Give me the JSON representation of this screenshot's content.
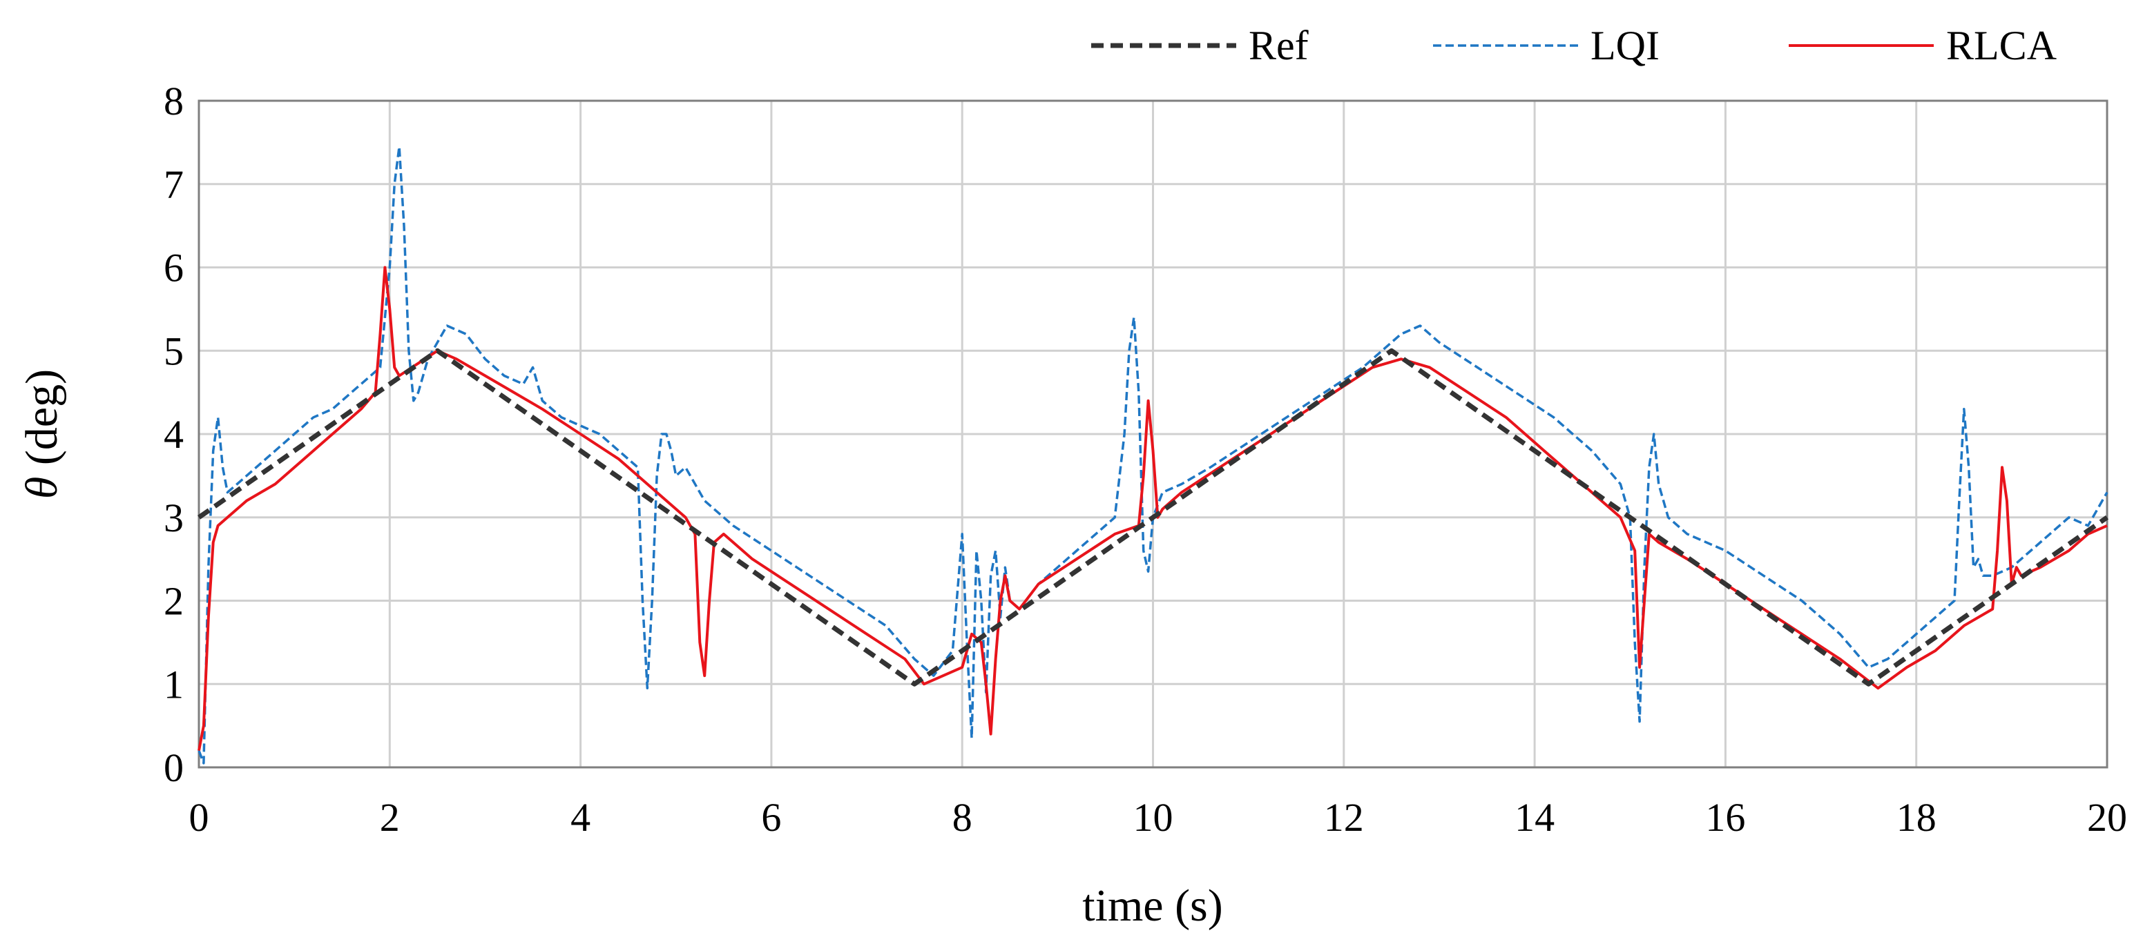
{
  "chart_data": {
    "type": "line",
    "title": "",
    "xlabel": "time (s)",
    "ylabel_symbol": "θ",
    "ylabel_unit": " (deg)",
    "xlim": [
      0,
      20
    ],
    "ylim": [
      0,
      8
    ],
    "xticks": [
      0,
      2,
      4,
      6,
      8,
      10,
      12,
      14,
      16,
      18,
      20
    ],
    "yticks": [
      0,
      1,
      2,
      3,
      4,
      5,
      6,
      7,
      8
    ],
    "grid": true,
    "legend_position": "top-right",
    "series": [
      {
        "name": "Ref",
        "color": "#333333",
        "style": "dashed",
        "x": [
          0,
          2.5,
          7.5,
          12.5,
          17.5,
          20
        ],
        "y": [
          3,
          5,
          1,
          5,
          1,
          3
        ]
      },
      {
        "name": "LQI",
        "color": "#1f77c4",
        "style": "dashed",
        "x": [
          0,
          0.05,
          0.1,
          0.15,
          0.2,
          0.25,
          0.3,
          0.4,
          0.6,
          0.8,
          1.0,
          1.2,
          1.4,
          1.6,
          1.8,
          1.9,
          2.0,
          2.05,
          2.1,
          2.15,
          2.2,
          2.25,
          2.3,
          2.4,
          2.6,
          2.8,
          3.0,
          3.2,
          3.4,
          3.5,
          3.6,
          3.8,
          4.0,
          4.2,
          4.4,
          4.6,
          4.65,
          4.7,
          4.75,
          4.8,
          4.85,
          4.9,
          4.95,
          5.0,
          5.1,
          5.3,
          5.6,
          6.0,
          6.4,
          6.8,
          7.2,
          7.5,
          7.7,
          7.9,
          8.0,
          8.05,
          8.1,
          8.15,
          8.2,
          8.25,
          8.3,
          8.35,
          8.4,
          8.45,
          8.5,
          8.6,
          8.8,
          9.0,
          9.2,
          9.4,
          9.6,
          9.7,
          9.75,
          9.8,
          9.85,
          9.9,
          9.95,
          10.0,
          10.1,
          10.3,
          10.6,
          11.0,
          11.4,
          11.8,
          12.2,
          12.6,
          12.8,
          13.0,
          13.4,
          13.8,
          14.2,
          14.6,
          14.9,
          15.0,
          15.05,
          15.1,
          15.15,
          15.2,
          15.25,
          15.3,
          15.4,
          15.6,
          16.0,
          16.4,
          16.8,
          17.2,
          17.5,
          17.7,
          17.9,
          18.1,
          18.3,
          18.4,
          18.45,
          18.5,
          18.55,
          18.6,
          18.65,
          18.7,
          18.8,
          19.0,
          19.2,
          19.4,
          19.6,
          19.8,
          20.0
        ],
        "y": [
          0.2,
          0.05,
          2.4,
          3.8,
          4.2,
          3.6,
          3.3,
          3.4,
          3.6,
          3.8,
          4.0,
          4.2,
          4.3,
          4.5,
          4.7,
          4.8,
          6.0,
          7.0,
          7.45,
          6.5,
          5.0,
          4.4,
          4.5,
          4.9,
          5.3,
          5.2,
          4.9,
          4.7,
          4.6,
          4.8,
          4.4,
          4.2,
          4.1,
          4.0,
          3.8,
          3.6,
          2.0,
          0.95,
          2.0,
          3.5,
          4.0,
          4.0,
          3.8,
          3.5,
          3.6,
          3.2,
          2.9,
          2.6,
          2.3,
          2.0,
          1.7,
          1.3,
          1.1,
          1.4,
          2.8,
          1.5,
          0.35,
          2.6,
          2.0,
          0.9,
          2.3,
          2.6,
          1.8,
          2.4,
          2.0,
          1.9,
          2.2,
          2.4,
          2.6,
          2.8,
          3.0,
          4.0,
          5.0,
          5.4,
          4.5,
          2.6,
          2.35,
          3.0,
          3.3,
          3.4,
          3.6,
          3.9,
          4.2,
          4.5,
          4.8,
          5.2,
          5.3,
          5.1,
          4.8,
          4.5,
          4.2,
          3.8,
          3.4,
          3.0,
          1.5,
          0.55,
          2.4,
          3.6,
          4.0,
          3.4,
          3.0,
          2.8,
          2.6,
          2.3,
          2.0,
          1.6,
          1.2,
          1.3,
          1.5,
          1.7,
          1.9,
          2.0,
          3.2,
          4.3,
          3.6,
          2.4,
          2.5,
          2.3,
          2.3,
          2.4,
          2.6,
          2.8,
          3.0,
          2.9,
          3.3
        ]
      },
      {
        "name": "RLCA",
        "color": "#e8141b",
        "style": "solid",
        "x": [
          0,
          0.05,
          0.1,
          0.15,
          0.2,
          0.3,
          0.5,
          0.8,
          1.1,
          1.4,
          1.7,
          1.85,
          1.9,
          1.95,
          2.0,
          2.05,
          2.1,
          2.3,
          2.5,
          2.7,
          3.0,
          3.3,
          3.6,
          4.0,
          4.4,
          4.8,
          5.1,
          5.2,
          5.25,
          5.3,
          5.35,
          5.4,
          5.5,
          5.8,
          6.2,
          6.6,
          7.0,
          7.4,
          7.6,
          7.8,
          8.0,
          8.1,
          8.2,
          8.25,
          8.3,
          8.35,
          8.4,
          8.45,
          8.5,
          8.6,
          8.8,
          9.2,
          9.6,
          9.85,
          9.9,
          9.95,
          10.0,
          10.05,
          10.1,
          10.3,
          10.7,
          11.1,
          11.5,
          11.9,
          12.3,
          12.6,
          12.9,
          13.3,
          13.7,
          14.1,
          14.5,
          14.9,
          15.05,
          15.1,
          15.15,
          15.2,
          15.3,
          15.6,
          16.0,
          16.4,
          16.8,
          17.2,
          17.6,
          17.9,
          18.2,
          18.5,
          18.8,
          18.85,
          18.9,
          18.95,
          19.0,
          19.05,
          19.1,
          19.3,
          19.6,
          19.8,
          20.0
        ],
        "y": [
          0.2,
          0.5,
          1.8,
          2.7,
          2.9,
          3.0,
          3.2,
          3.4,
          3.7,
          4.0,
          4.3,
          4.5,
          5.2,
          6.0,
          5.5,
          4.8,
          4.7,
          4.85,
          5.0,
          4.9,
          4.7,
          4.5,
          4.3,
          4.0,
          3.7,
          3.3,
          3.0,
          2.8,
          1.5,
          1.1,
          2.0,
          2.7,
          2.8,
          2.5,
          2.2,
          1.9,
          1.6,
          1.3,
          1.0,
          1.1,
          1.2,
          1.6,
          1.5,
          1.0,
          0.4,
          1.3,
          2.0,
          2.3,
          2.0,
          1.9,
          2.2,
          2.5,
          2.8,
          2.9,
          3.5,
          4.4,
          3.8,
          3.0,
          3.1,
          3.3,
          3.6,
          3.9,
          4.2,
          4.5,
          4.8,
          4.9,
          4.8,
          4.5,
          4.2,
          3.8,
          3.4,
          3.0,
          2.6,
          1.2,
          2.0,
          2.8,
          2.7,
          2.5,
          2.2,
          1.9,
          1.6,
          1.3,
          0.95,
          1.2,
          1.4,
          1.7,
          1.9,
          2.6,
          3.6,
          3.2,
          2.2,
          2.4,
          2.3,
          2.4,
          2.6,
          2.8,
          2.9
        ]
      }
    ]
  }
}
